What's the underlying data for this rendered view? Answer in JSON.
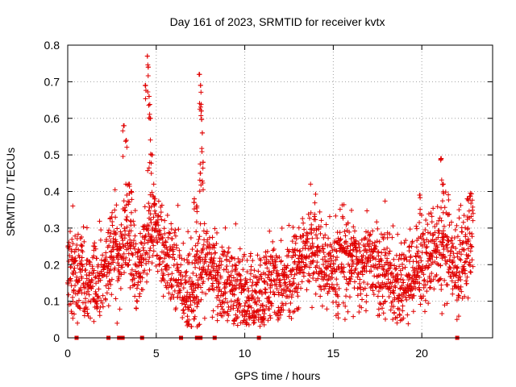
{
  "chart_data": {
    "type": "scatter",
    "title": "Day 161 of 2023, SRMTID for receiver kvtx",
    "xlabel": "GPS time / hours",
    "ylabel": "SRMTID / TECUs",
    "xlim": [
      0,
      24
    ],
    "ylim": [
      0,
      0.8
    ],
    "x_ticks": [
      0,
      5,
      10,
      15,
      20
    ],
    "x_tick_labels": [
      "0",
      "5",
      "10",
      "15",
      "20"
    ],
    "y_ticks": [
      0,
      0.1,
      0.2,
      0.3,
      0.4,
      0.5,
      0.6,
      0.7,
      0.8
    ],
    "y_tick_labels": [
      "0",
      "0.1",
      "0.2",
      "0.3",
      "0.4",
      "0.5",
      "0.6",
      "0.7",
      "0.8"
    ],
    "grid": true,
    "marker": "plus",
    "color": "#e00000",
    "trend": [
      {
        "x": 0.0,
        "y": 0.2
      },
      {
        "x": 0.5,
        "y": 0.17
      },
      {
        "x": 1.0,
        "y": 0.15
      },
      {
        "x": 1.5,
        "y": 0.16
      },
      {
        "x": 2.0,
        "y": 0.18
      },
      {
        "x": 2.5,
        "y": 0.24
      },
      {
        "x": 3.0,
        "y": 0.22
      },
      {
        "x": 3.3,
        "y": 0.3
      },
      {
        "x": 3.6,
        "y": 0.24
      },
      {
        "x": 4.0,
        "y": 0.17
      },
      {
        "x": 4.5,
        "y": 0.25
      },
      {
        "x": 5.0,
        "y": 0.3
      },
      {
        "x": 5.5,
        "y": 0.22
      },
      {
        "x": 6.0,
        "y": 0.2
      },
      {
        "x": 6.5,
        "y": 0.15
      },
      {
        "x": 7.0,
        "y": 0.12
      },
      {
        "x": 7.5,
        "y": 0.2
      },
      {
        "x": 8.0,
        "y": 0.22
      },
      {
        "x": 8.5,
        "y": 0.15
      },
      {
        "x": 9.0,
        "y": 0.16
      },
      {
        "x": 9.5,
        "y": 0.14
      },
      {
        "x": 10.0,
        "y": 0.1
      },
      {
        "x": 10.5,
        "y": 0.11
      },
      {
        "x": 11.0,
        "y": 0.13
      },
      {
        "x": 11.5,
        "y": 0.17
      },
      {
        "x": 12.0,
        "y": 0.15
      },
      {
        "x": 12.5,
        "y": 0.14
      },
      {
        "x": 13.0,
        "y": 0.2
      },
      {
        "x": 13.5,
        "y": 0.24
      },
      {
        "x": 14.0,
        "y": 0.26
      },
      {
        "x": 14.5,
        "y": 0.2
      },
      {
        "x": 15.0,
        "y": 0.18
      },
      {
        "x": 15.5,
        "y": 0.22
      },
      {
        "x": 16.0,
        "y": 0.21
      },
      {
        "x": 16.5,
        "y": 0.2
      },
      {
        "x": 17.0,
        "y": 0.23
      },
      {
        "x": 17.5,
        "y": 0.19
      },
      {
        "x": 18.0,
        "y": 0.18
      },
      {
        "x": 18.5,
        "y": 0.14
      },
      {
        "x": 19.0,
        "y": 0.15
      },
      {
        "x": 19.5,
        "y": 0.18
      },
      {
        "x": 20.0,
        "y": 0.21
      },
      {
        "x": 20.5,
        "y": 0.23
      },
      {
        "x": 21.0,
        "y": 0.24
      },
      {
        "x": 21.5,
        "y": 0.26
      },
      {
        "x": 22.0,
        "y": 0.17
      },
      {
        "x": 22.5,
        "y": 0.25
      },
      {
        "x": 22.9,
        "y": 0.3
      }
    ],
    "spikes": [
      {
        "x": 3.15,
        "y": 0.58
      },
      {
        "x": 3.3,
        "y": 0.54
      },
      {
        "x": 3.45,
        "y": 0.42
      },
      {
        "x": 3.6,
        "y": 0.4
      },
      {
        "x": 4.4,
        "y": 0.69
      },
      {
        "x": 4.5,
        "y": 0.77
      },
      {
        "x": 4.55,
        "y": 0.74
      },
      {
        "x": 4.6,
        "y": 0.66
      },
      {
        "x": 4.65,
        "y": 0.6
      },
      {
        "x": 4.75,
        "y": 0.5
      },
      {
        "x": 4.9,
        "y": 0.38
      },
      {
        "x": 7.15,
        "y": 0.38
      },
      {
        "x": 7.3,
        "y": 0.36
      },
      {
        "x": 7.45,
        "y": 0.72
      },
      {
        "x": 7.5,
        "y": 0.69
      },
      {
        "x": 7.55,
        "y": 0.62
      },
      {
        "x": 7.6,
        "y": 0.56
      },
      {
        "x": 7.65,
        "y": 0.48
      },
      {
        "x": 7.5,
        "y": 0.45
      },
      {
        "x": 21.1,
        "y": 0.49
      },
      {
        "x": 21.2,
        "y": 0.42
      },
      {
        "x": 19.9,
        "y": 0.39
      },
      {
        "x": 22.6,
        "y": 0.38
      }
    ],
    "zero_markers": [
      0.5,
      2.3,
      2.9,
      3.0,
      3.1,
      4.2,
      6.4,
      7.3,
      7.4,
      7.5,
      8.3,
      10.8,
      22.0
    ]
  }
}
